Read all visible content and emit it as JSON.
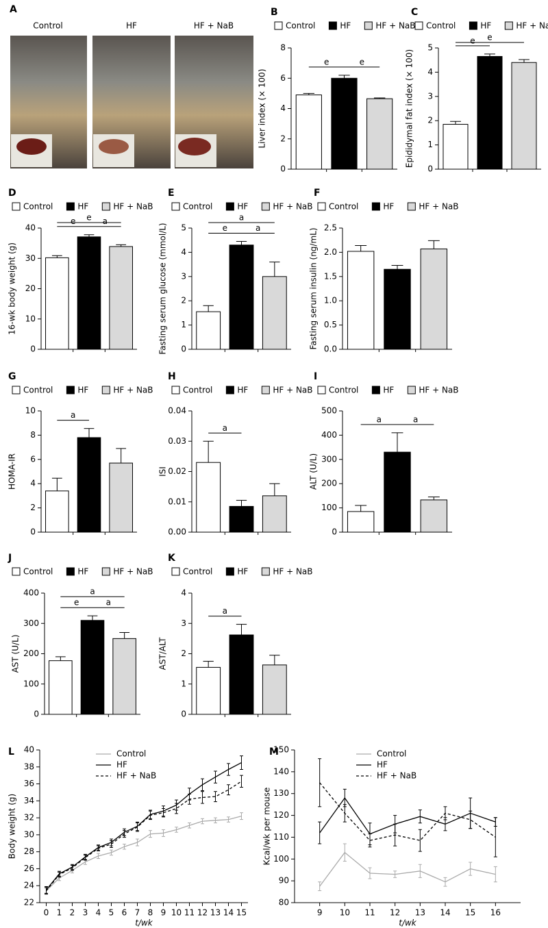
{
  "chart_data": [
    {
      "type": "image",
      "panel": "A",
      "labels": [
        "Control",
        "HF",
        "HF + NaB"
      ]
    },
    {
      "type": "bar",
      "panel": "B",
      "ylabel": "Liver index (× 100)",
      "ylim": [
        0,
        8
      ],
      "yticks": [
        0,
        2,
        4,
        6,
        8
      ],
      "series": [
        {
          "name": "Control",
          "color": "#ffffff",
          "values": [
            4.9
          ],
          "errors": [
            0.1
          ]
        },
        {
          "name": "HF",
          "color": "#000000",
          "values": [
            6.0
          ],
          "errors": [
            0.2
          ]
        },
        {
          "name": "HF + NaB",
          "color": "#d9d9d9",
          "values": [
            4.65
          ],
          "errors": [
            0.05
          ]
        }
      ],
      "annotations": [
        {
          "text": "e",
          "between": [
            0,
            1
          ]
        },
        {
          "text": "e",
          "between": [
            1,
            2
          ]
        }
      ]
    },
    {
      "type": "bar",
      "panel": "C",
      "ylabel": "Epididymal fat index (× 100)",
      "ylim": [
        0,
        5
      ],
      "yticks": [
        0,
        1,
        2,
        3,
        4,
        5
      ],
      "series": [
        {
          "name": "Control",
          "color": "#ffffff",
          "values": [
            1.85
          ],
          "errors": [
            0.12
          ]
        },
        {
          "name": "HF",
          "color": "#000000",
          "values": [
            4.65
          ],
          "errors": [
            0.1
          ]
        },
        {
          "name": "HF + NaB",
          "color": "#d9d9d9",
          "values": [
            4.4
          ],
          "errors": [
            0.12
          ]
        }
      ],
      "annotations": [
        {
          "text": "e",
          "between": [
            0,
            1
          ]
        },
        {
          "text": "e",
          "between": [
            0,
            2
          ]
        }
      ]
    },
    {
      "type": "bar",
      "panel": "D",
      "ylabel": "16-wk body weight (g)",
      "ylim": [
        0,
        40
      ],
      "yticks": [
        0,
        10,
        20,
        30,
        40
      ],
      "series": [
        {
          "name": "Control",
          "color": "#ffffff",
          "values": [
            30.2
          ],
          "errors": [
            0.7
          ]
        },
        {
          "name": "HF",
          "color": "#000000",
          "values": [
            37.1
          ],
          "errors": [
            0.7
          ]
        },
        {
          "name": "HF + NaB",
          "color": "#d9d9d9",
          "values": [
            33.9
          ],
          "errors": [
            0.6
          ]
        }
      ],
      "annotations": [
        {
          "text": "e",
          "between": [
            0,
            2
          ]
        },
        {
          "text": "e",
          "between": [
            0,
            1
          ]
        },
        {
          "text": "a",
          "between": [
            1,
            2
          ]
        }
      ]
    },
    {
      "type": "bar",
      "panel": "E",
      "ylabel": "Fasting serum glucose (mmol/L)",
      "ylim": [
        0,
        5
      ],
      "yticks": [
        0,
        1,
        2,
        3,
        4,
        5
      ],
      "series": [
        {
          "name": "Control",
          "color": "#ffffff",
          "values": [
            1.55
          ],
          "errors": [
            0.25
          ]
        },
        {
          "name": "HF",
          "color": "#000000",
          "values": [
            4.3
          ],
          "errors": [
            0.15
          ]
        },
        {
          "name": "HF + NaB",
          "color": "#d9d9d9",
          "values": [
            3.0
          ],
          "errors": [
            0.6
          ]
        }
      ],
      "annotations": [
        {
          "text": "a",
          "between": [
            0,
            2
          ]
        },
        {
          "text": "e",
          "between": [
            0,
            1
          ]
        },
        {
          "text": "a",
          "between": [
            1,
            2
          ]
        }
      ]
    },
    {
      "type": "bar",
      "panel": "F",
      "ylabel": "Fasting serum insulin (ng/mL)",
      "ylim": [
        0,
        2.5
      ],
      "yticks": [
        {
          "value": 0,
          "label": "0.0"
        },
        0.5,
        {
          "value": 1,
          "label": "1.0"
        },
        1.5,
        {
          "value": 2,
          "label": "2.0"
        },
        2.5
      ],
      "series": [
        {
          "name": "Control",
          "color": "#ffffff",
          "values": [
            2.02
          ],
          "errors": [
            0.12
          ]
        },
        {
          "name": "HF",
          "color": "#000000",
          "values": [
            1.65
          ],
          "errors": [
            0.08
          ]
        },
        {
          "name": "HF + NaB",
          "color": "#d9d9d9",
          "values": [
            2.07
          ],
          "errors": [
            0.17
          ]
        }
      ],
      "annotations": []
    },
    {
      "type": "bar",
      "panel": "G",
      "ylabel": "HOMA-IR",
      "ylim": [
        0,
        10
      ],
      "yticks": [
        0,
        2,
        4,
        6,
        8,
        10
      ],
      "series": [
        {
          "name": "Control",
          "color": "#ffffff",
          "values": [
            3.4
          ],
          "errors": [
            1.05
          ]
        },
        {
          "name": "HF",
          "color": "#000000",
          "values": [
            7.8
          ],
          "errors": [
            0.75
          ]
        },
        {
          "name": "HF + NaB",
          "color": "#d9d9d9",
          "values": [
            5.7
          ],
          "errors": [
            1.2
          ]
        }
      ],
      "annotations": [
        {
          "text": "a",
          "between": [
            0,
            1
          ]
        }
      ]
    },
    {
      "type": "bar",
      "panel": "H",
      "ylabel": "ISI",
      "ylim": [
        0,
        0.04
      ],
      "yticks": [
        {
          "value": 0,
          "label": "0.00"
        },
        0.01,
        0.02,
        0.03,
        0.04
      ],
      "series": [
        {
          "name": "Control",
          "color": "#ffffff",
          "values": [
            0.023
          ],
          "errors": [
            0.007
          ]
        },
        {
          "name": "HF",
          "color": "#000000",
          "values": [
            0.0085
          ],
          "errors": [
            0.002
          ]
        },
        {
          "name": "HF + NaB",
          "color": "#d9d9d9",
          "values": [
            0.012
          ],
          "errors": [
            0.004
          ]
        }
      ],
      "annotations": [
        {
          "text": "a",
          "between": [
            0,
            1
          ]
        }
      ]
    },
    {
      "type": "bar",
      "panel": "I",
      "ylabel": "ALT (U/L)",
      "ylim": [
        0,
        500
      ],
      "yticks": [
        0,
        100,
        200,
        300,
        400,
        500
      ],
      "series": [
        {
          "name": "Control",
          "color": "#ffffff",
          "values": [
            85
          ],
          "errors": [
            25
          ]
        },
        {
          "name": "HF",
          "color": "#000000",
          "values": [
            330
          ],
          "errors": [
            80
          ]
        },
        {
          "name": "HF + NaB",
          "color": "#d9d9d9",
          "values": [
            133
          ],
          "errors": [
            12
          ]
        }
      ],
      "annotations": [
        {
          "text": "a",
          "between": [
            0,
            1
          ]
        },
        {
          "text": "a",
          "between": [
            1,
            2
          ]
        }
      ]
    },
    {
      "type": "bar",
      "panel": "J",
      "ylabel": "AST (U/L)",
      "ylim": [
        0,
        400
      ],
      "yticks": [
        0,
        100,
        200,
        300,
        400
      ],
      "series": [
        {
          "name": "Control",
          "color": "#ffffff",
          "values": [
            177
          ],
          "errors": [
            13
          ]
        },
        {
          "name": "HF",
          "color": "#000000",
          "values": [
            310
          ],
          "errors": [
            15
          ]
        },
        {
          "name": "HF + NaB",
          "color": "#d9d9d9",
          "values": [
            250
          ],
          "errors": [
            20
          ]
        }
      ],
      "annotations": [
        {
          "text": "a",
          "between": [
            0,
            2
          ]
        },
        {
          "text": "e",
          "between": [
            0,
            1
          ]
        },
        {
          "text": "a",
          "between": [
            1,
            2
          ]
        }
      ]
    },
    {
      "type": "bar",
      "panel": "K",
      "ylabel": "AST/ALT",
      "ylim": [
        0,
        4
      ],
      "yticks": [
        0,
        1,
        2,
        3,
        4
      ],
      "series": [
        {
          "name": "Control",
          "color": "#ffffff",
          "values": [
            1.55
          ],
          "errors": [
            0.2
          ]
        },
        {
          "name": "HF",
          "color": "#000000",
          "values": [
            2.62
          ],
          "errors": [
            0.35
          ]
        },
        {
          "name": "HF + NaB",
          "color": "#d9d9d9",
          "values": [
            1.63
          ],
          "errors": [
            0.32
          ]
        }
      ],
      "annotations": [
        {
          "text": "a",
          "between": [
            0,
            1
          ]
        }
      ]
    },
    {
      "type": "line",
      "panel": "L",
      "ylabel": "Body weight (g)",
      "xlabel": "t/wk",
      "x": [
        0,
        1,
        2,
        3,
        4,
        5,
        6,
        7,
        8,
        9,
        10,
        11,
        12,
        13,
        14,
        15
      ],
      "xlim": [
        -0.5,
        15.5
      ],
      "xticks": [
        0,
        1,
        2,
        3,
        4,
        5,
        6,
        7,
        8,
        9,
        10,
        11,
        12,
        13,
        14,
        15
      ],
      "ylim": [
        22,
        40
      ],
      "yticks": [
        22,
        24,
        26,
        28,
        30,
        32,
        34,
        36,
        38,
        40
      ],
      "series": [
        {
          "name": "Control",
          "color": "#aaaaaa",
          "dashed": false,
          "values": [
            23.4,
            24.9,
            25.8,
            26.8,
            27.5,
            27.9,
            28.6,
            29.1,
            30.1,
            30.2,
            30.6,
            31.1,
            31.6,
            31.7,
            31.8,
            32.2
          ],
          "errors": [
            0.3,
            0.3,
            0.3,
            0.3,
            0.3,
            0.3,
            0.3,
            0.4,
            0.4,
            0.4,
            0.3,
            0.3,
            0.3,
            0.3,
            0.3,
            0.4
          ]
        },
        {
          "name": "HF",
          "color": "#000000",
          "dashed": false,
          "values": [
            23.5,
            25.4,
            26.2,
            27.4,
            28.5,
            29.1,
            30.3,
            31.0,
            32.4,
            32.8,
            33.5,
            34.8,
            35.9,
            36.8,
            37.7,
            38.5
          ],
          "errors": [
            0.4,
            0.3,
            0.3,
            0.3,
            0.3,
            0.4,
            0.4,
            0.5,
            0.5,
            0.6,
            0.6,
            0.7,
            0.7,
            0.7,
            0.7,
            0.8
          ]
        },
        {
          "name": "HF + NaB",
          "color": "#000000",
          "dashed": true,
          "values": [
            23.4,
            25.3,
            26.1,
            27.3,
            28.4,
            28.9,
            30.1,
            30.9,
            32.3,
            32.6,
            33.1,
            34.2,
            34.4,
            34.5,
            35.3,
            36.3
          ],
          "errors": [
            0.4,
            0.3,
            0.3,
            0.3,
            0.3,
            0.4,
            0.4,
            0.5,
            0.5,
            0.5,
            0.6,
            0.6,
            0.7,
            0.6,
            0.6,
            0.7
          ]
        }
      ]
    },
    {
      "type": "line",
      "panel": "M",
      "ylabel": "Kcal/wk per mouse",
      "xlabel": "t/wk",
      "x": [
        9,
        10,
        11,
        12,
        13,
        14,
        15,
        16
      ],
      "xlim": [
        8,
        17
      ],
      "xticks": [
        9,
        10,
        11,
        12,
        13,
        14,
        15,
        16
      ],
      "ylim": [
        80,
        150
      ],
      "yticks": [
        80,
        90,
        100,
        110,
        120,
        130,
        140,
        150
      ],
      "series": [
        {
          "name": "Control",
          "color": "#aaaaaa",
          "dashed": false,
          "values": [
            87.5,
            103,
            93.5,
            93,
            94.5,
            89.5,
            95.5,
            93
          ],
          "errors": [
            2,
            4,
            2.5,
            1.5,
            3,
            2,
            3,
            3.5
          ]
        },
        {
          "name": "HF",
          "color": "#000000",
          "dashed": false,
          "values": [
            112,
            128,
            111.5,
            116,
            119.5,
            116,
            121,
            117
          ],
          "errors": [
            5,
            4,
            5,
            4,
            3,
            3,
            7,
            2
          ]
        },
        {
          "name": "HF + NaB",
          "color": "#000000",
          "dashed": true,
          "values": [
            135,
            121,
            108.5,
            111,
            108.5,
            121,
            118,
            110
          ],
          "errors": [
            11,
            4,
            3,
            5,
            5,
            3,
            4,
            9
          ]
        }
      ]
    }
  ]
}
